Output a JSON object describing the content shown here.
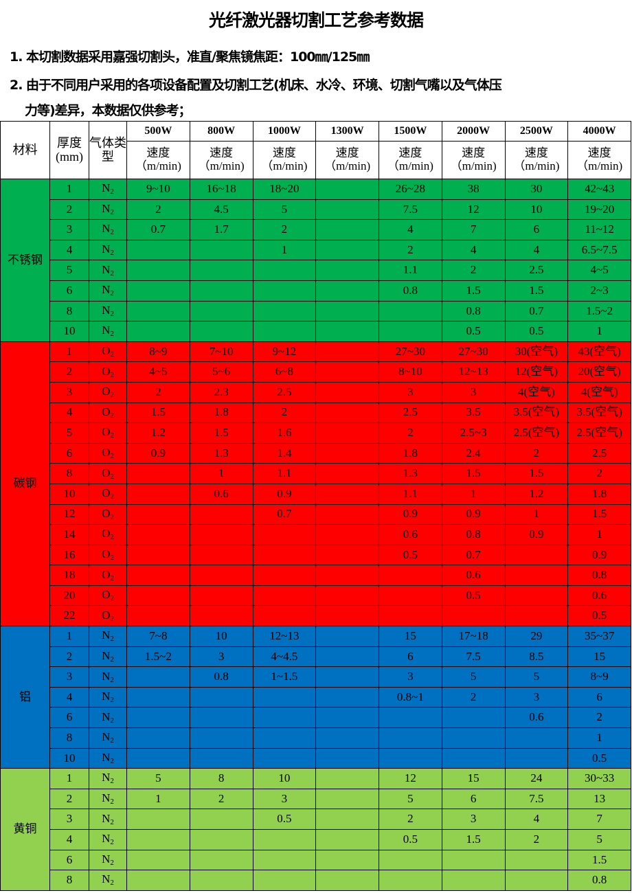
{
  "title": "光纤激光器切割工艺参考数据",
  "notes": [
    "1. 本切割数据采用嘉强切割头，准直/聚焦镜焦距：100㎜/125㎜",
    "2. 由于不同用户采用的各项设备配置及切割工艺(机床、水冷、环境、切割气嘴以及气体压",
    "力等)差异，本数据仅供参考；"
  ],
  "table": {
    "headers": {
      "material": "材料",
      "thickness": "厚度(mm)",
      "gas": "气体类型",
      "speed": "速度（m/min)"
    },
    "powers": [
      "500W",
      "800W",
      "1000W",
      "1300W",
      "1500W",
      "2000W",
      "2500W",
      "4000W"
    ],
    "groups": [
      {
        "material": "不锈钢",
        "color": "#00b050",
        "gas": "N2",
        "rows": [
          [
            "1",
            "9~10",
            "16~18",
            "18~20",
            "",
            "26~28",
            "38",
            "30",
            "42~43"
          ],
          [
            "2",
            "2",
            "4.5",
            "5",
            "",
            "7.5",
            "12",
            "10",
            "19~20"
          ],
          [
            "3",
            "0.7",
            "1.7",
            "2",
            "",
            "4",
            "7",
            "6",
            "11~12"
          ],
          [
            "4",
            "",
            "",
            "1",
            "",
            "2",
            "4",
            "4",
            "6.5~7.5"
          ],
          [
            "5",
            "",
            "",
            "",
            "",
            "1.1",
            "2",
            "2.5",
            "4~5"
          ],
          [
            "6",
            "",
            "",
            "",
            "",
            "0.8",
            "1.5",
            "1.5",
            "2~3"
          ],
          [
            "8",
            "",
            "",
            "",
            "",
            "",
            "0.8",
            "0.7",
            "1.5~2"
          ],
          [
            "10",
            "",
            "",
            "",
            "",
            "",
            "0.5",
            "0.5",
            "1"
          ]
        ]
      },
      {
        "material": "碳钢",
        "color": "#ff0000",
        "gas": "O2",
        "rows": [
          [
            "1",
            "8~9",
            "7~10",
            "9~12",
            "",
            "27~30",
            "27~30",
            "30(空气)",
            "43(空气)"
          ],
          [
            "2",
            "4~5",
            "5~6",
            "6~8",
            "",
            "8~10",
            "12~13",
            "12(空气)",
            "20(空气)"
          ],
          [
            "3",
            "2",
            "2.3",
            "2.5",
            "",
            "3",
            "3",
            "4(空气)",
            "4(空气)"
          ],
          [
            "4",
            "1.5",
            "1.8",
            "2",
            "",
            "2.5",
            "3.5",
            "3.5(空气)",
            "3.5(空气)"
          ],
          [
            "5",
            "1.2",
            "1.5",
            "1.6",
            "",
            "2",
            "2.5~3",
            "2.5(空气)",
            "2.5(空气)"
          ],
          [
            "6",
            "0.9",
            "1.3",
            "1.4",
            "",
            "1.8",
            "2.4",
            "2",
            "2.5"
          ],
          [
            "8",
            "",
            "1",
            "1.1",
            "",
            "1.3",
            "1.5",
            "1.5",
            "2"
          ],
          [
            "10",
            "",
            "0.6",
            "0.9",
            "",
            "1.1",
            "1",
            "1.2",
            "1.8"
          ],
          [
            "12",
            "",
            "",
            "0.7",
            "",
            "0.9",
            "0.9",
            "1",
            "1.5"
          ],
          [
            "14",
            "",
            "",
            "",
            "",
            "0.6",
            "0.8",
            "0.9",
            "1"
          ],
          [
            "16",
            "",
            "",
            "",
            "",
            "0.5",
            "0.7",
            "",
            "0.9"
          ],
          [
            "18",
            "",
            "",
            "",
            "",
            "",
            "0.6",
            "",
            "0.8"
          ],
          [
            "20",
            "",
            "",
            "",
            "",
            "",
            "0.5",
            "",
            "0.6"
          ],
          [
            "22",
            "",
            "",
            "",
            "",
            "",
            "",
            "",
            "0.5"
          ]
        ]
      },
      {
        "material": "铝",
        "color": "#0070c0",
        "gas": "N2",
        "rows": [
          [
            "1",
            "7~8",
            "10",
            "12~13",
            "",
            "15",
            "17~18",
            "29",
            "35~37"
          ],
          [
            "2",
            "1.5~2",
            "3",
            "4~4.5",
            "",
            "6",
            "7.5",
            "8.5",
            "15"
          ],
          [
            "3",
            "",
            "0.8",
            "1~1.5",
            "",
            "3",
            "5",
            "5",
            "8~9"
          ],
          [
            "4",
            "",
            "",
            "",
            "",
            "0.8~1",
            "2",
            "3",
            "6"
          ],
          [
            "6",
            "",
            "",
            "",
            "",
            "",
            "",
            "0.6",
            "2"
          ],
          [
            "8",
            "",
            "",
            "",
            "",
            "",
            "",
            "",
            "1"
          ],
          [
            "10",
            "",
            "",
            "",
            "",
            "",
            "",
            "",
            "0.5"
          ]
        ]
      },
      {
        "material": "黄铜",
        "color": "#92d050",
        "gas": "N2",
        "rows": [
          [
            "1",
            "5",
            "8",
            "10",
            "",
            "12",
            "15",
            "24",
            "30~33"
          ],
          [
            "2",
            "1",
            "2",
            "3",
            "",
            "5",
            "6",
            "7.5",
            "13"
          ],
          [
            "3",
            "",
            "",
            "0.5",
            "",
            "2",
            "3",
            "4",
            "7"
          ],
          [
            "4",
            "",
            "",
            "",
            "",
            "0.5",
            "1.5",
            "2",
            "5"
          ],
          [
            "6",
            "",
            "",
            "",
            "",
            "",
            "",
            "",
            "1.5"
          ],
          [
            "8",
            "",
            "",
            "",
            "",
            "",
            "",
            "",
            "0.8"
          ]
        ]
      }
    ]
  }
}
